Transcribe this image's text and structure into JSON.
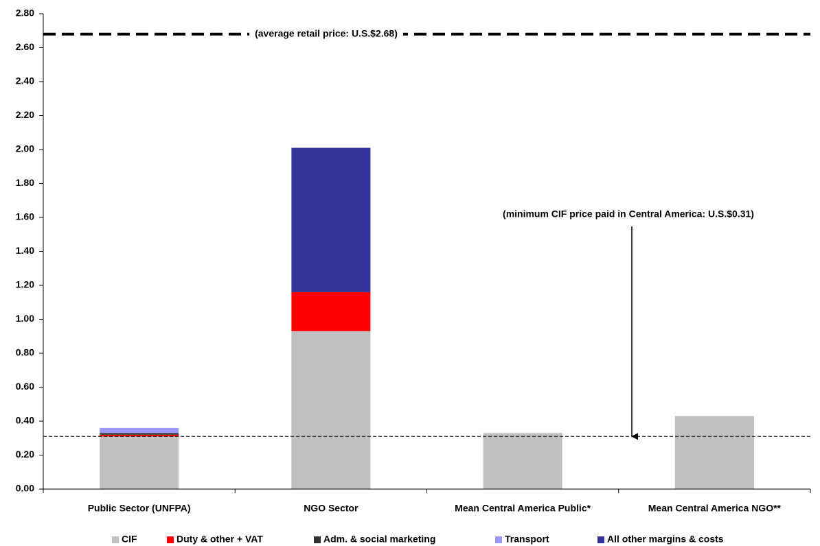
{
  "chart_data": {
    "type": "stacked_bar",
    "categories": [
      "Public Sector (UNFPA)",
      "NGO Sector",
      "Mean Central America Public*",
      "Mean Central America NGO**"
    ],
    "series": [
      {
        "name": "CIF",
        "color": "#c0c0c0",
        "values": [
          0.31,
          0.93,
          0.33,
          0.43
        ]
      },
      {
        "name": "Duty & other + VAT",
        "color": "#ff0000",
        "values": [
          0.01,
          0.23,
          0,
          0
        ]
      },
      {
        "name": "Adm. & social marketing",
        "color": "#333333",
        "values": [
          0.01,
          0,
          0,
          0
        ]
      },
      {
        "name": "Transport",
        "color": "#9999ff",
        "values": [
          0.03,
          0,
          0,
          0
        ]
      },
      {
        "name": "All other margins & costs",
        "color": "#333399",
        "values": [
          0,
          0.85,
          0,
          0
        ]
      }
    ],
    "ylim": [
      0,
      2.8
    ],
    "yticks": [
      {
        "value": 0,
        "label": "0.00"
      },
      {
        "value": 0.2,
        "label": "0.20"
      },
      {
        "value": 0.4,
        "label": "0.40"
      },
      {
        "value": 0.6,
        "label": "0.60"
      },
      {
        "value": 0.8,
        "label": "0.80"
      },
      {
        "value": 1,
        "label": "1.00"
      },
      {
        "value": 1.2,
        "label": "1.20"
      },
      {
        "value": 1.4,
        "label": "1.40"
      },
      {
        "value": 1.6,
        "label": "1.60"
      },
      {
        "value": 1.8,
        "label": "1.80"
      },
      {
        "value": 2,
        "label": "2.00"
      },
      {
        "value": 2.2,
        "label": "2.20"
      },
      {
        "value": 2.4,
        "label": "2.40"
      },
      {
        "value": 2.6,
        "label": "2.60"
      },
      {
        "value": 2.8,
        "label": "2.80"
      }
    ],
    "reference_lines": [
      {
        "value": 2.68,
        "label": "(average retail price: U.S.$2.68)"
      },
      {
        "value": 0.31,
        "label": "(minimum CIF price paid in Central America: U.S.$0.31)"
      }
    ],
    "legend": "bottom"
  }
}
